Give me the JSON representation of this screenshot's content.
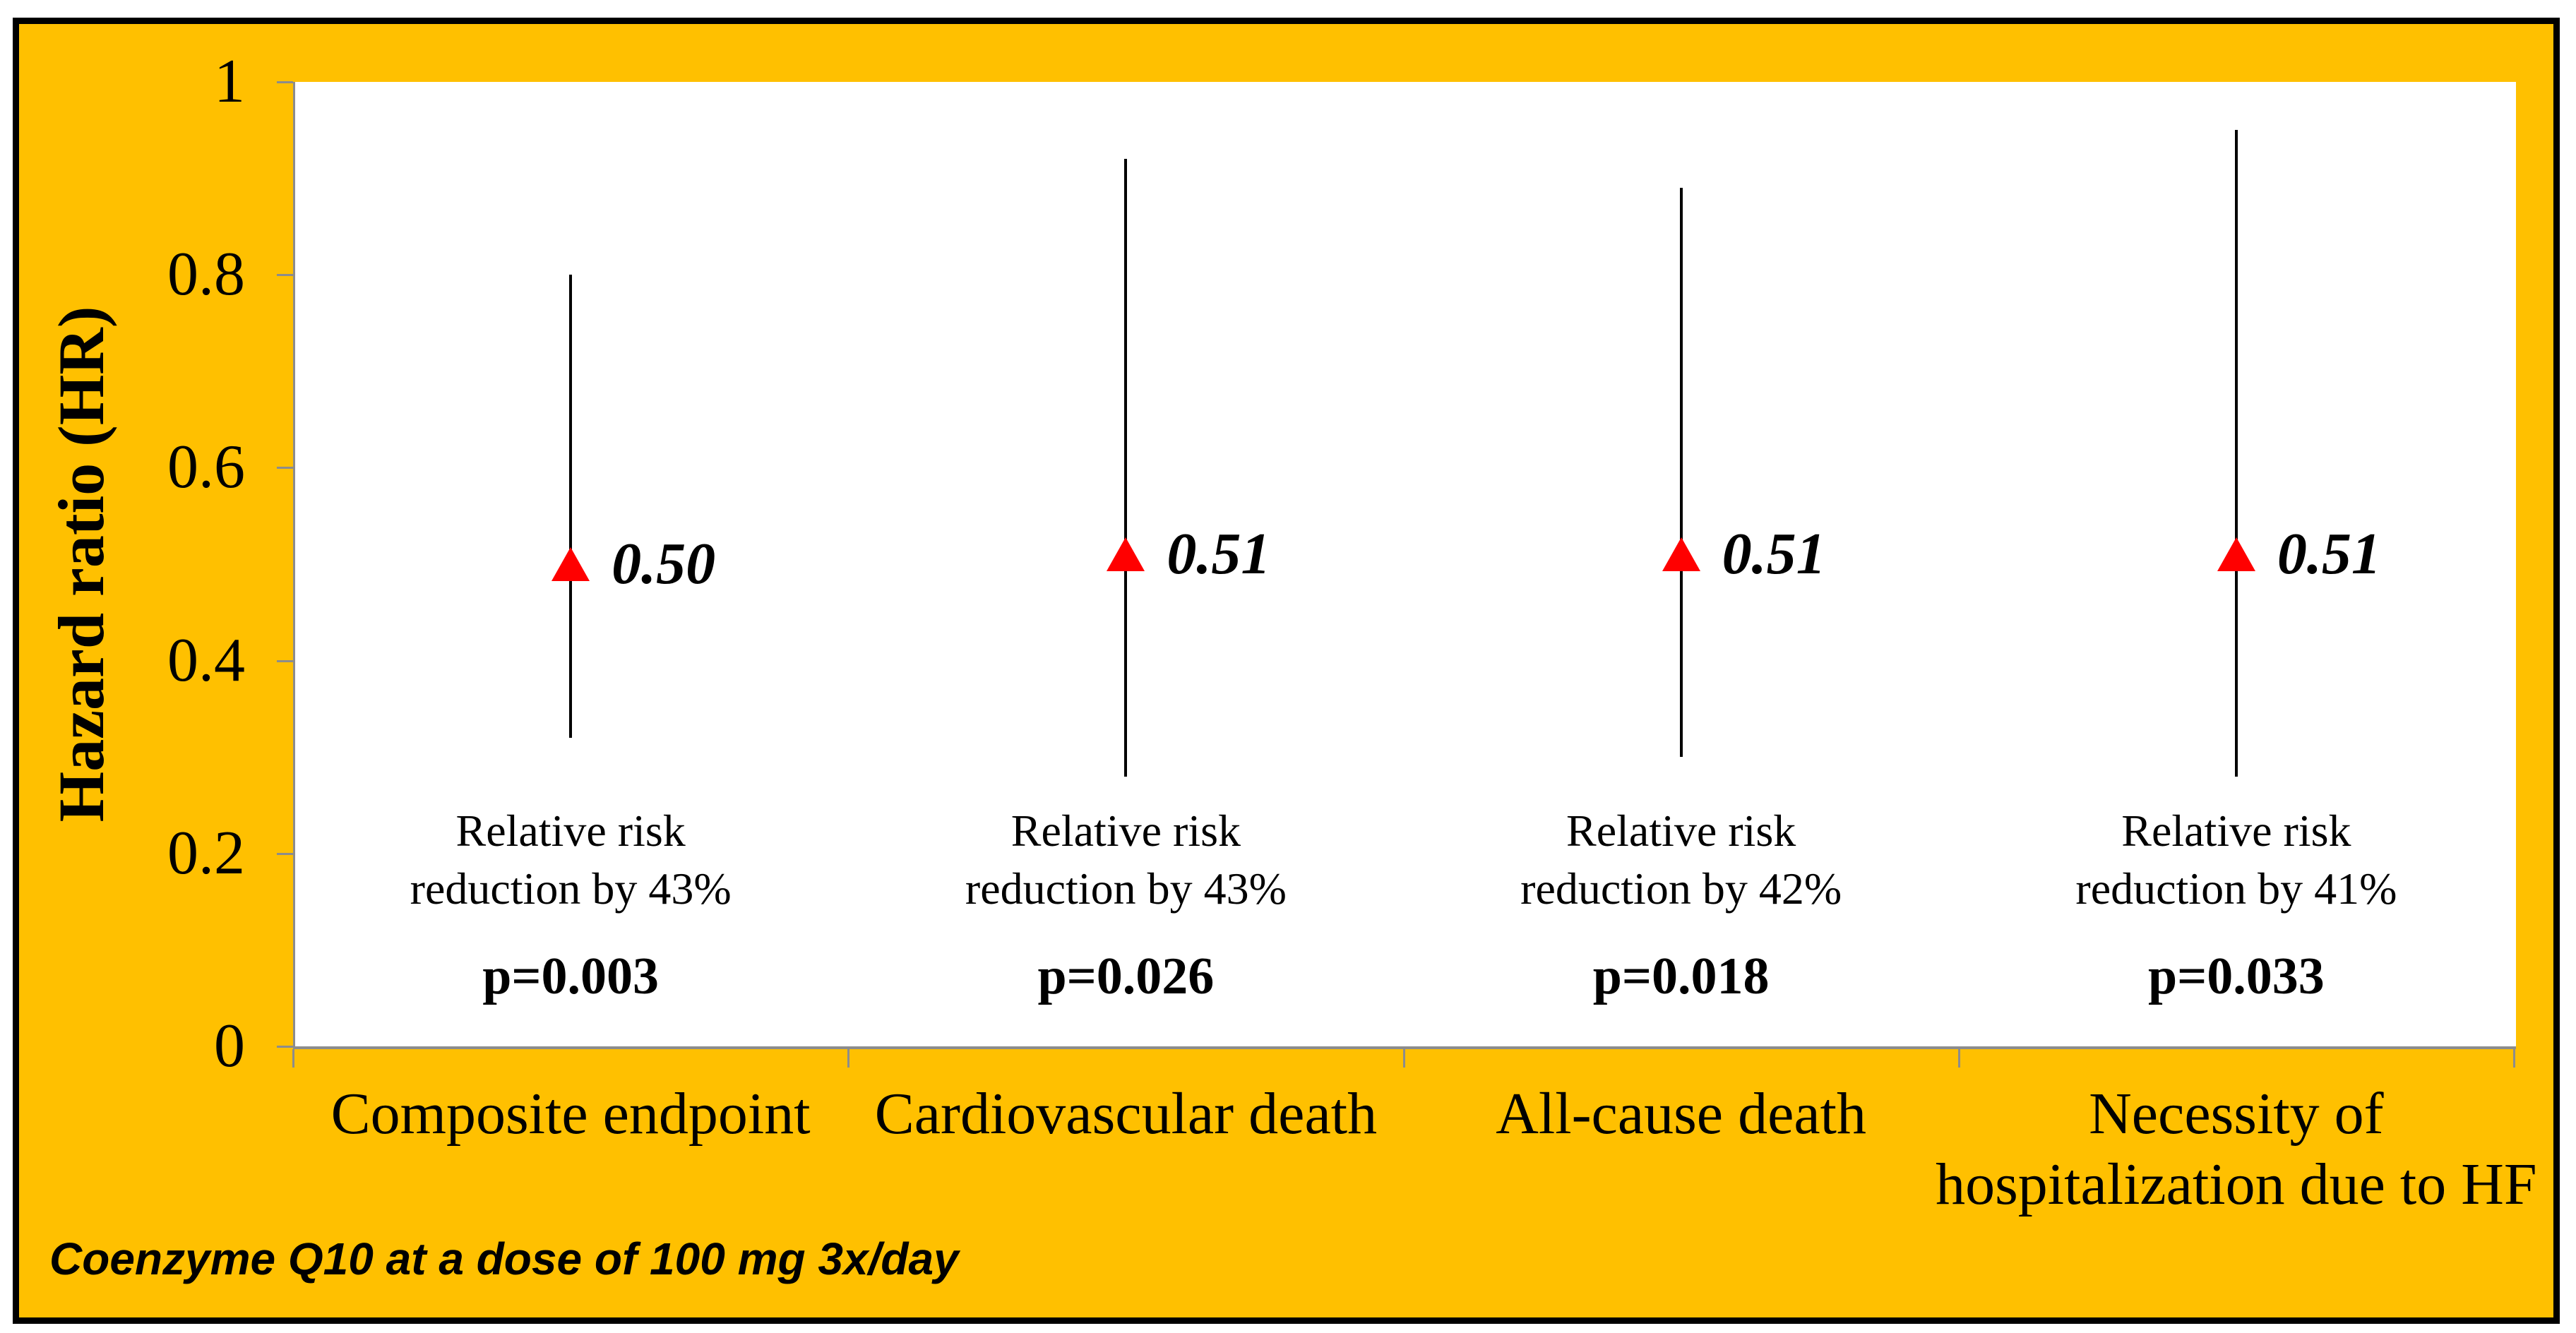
{
  "chart_data": {
    "type": "scatter",
    "subtype": "point-estimates-with-confidence-intervals",
    "title": "",
    "ylabel": "Hazard  ratio (HR)",
    "xlabel": "",
    "ylim": [
      0,
      1
    ],
    "yticks": [
      {
        "value": 1,
        "label": "1"
      },
      {
        "value": 0.8,
        "label": "0.8"
      },
      {
        "value": 0.6,
        "label": "0.6"
      },
      {
        "value": 0.4,
        "label": "0.4"
      },
      {
        "value": 0.2,
        "label": "0.2"
      },
      {
        "value": 0,
        "label": "0"
      }
    ],
    "grid": false,
    "legend_position": "none",
    "marker": "red-triangle-up-icon",
    "categories": [
      "Composite endpoint",
      "Cardiovascular death",
      "All-cause death",
      "Necessity of hospitalization due to HF"
    ],
    "series": [
      {
        "category": "Composite endpoint",
        "hr": 0.5,
        "hr_label": "0.50",
        "ci_low": 0.32,
        "ci_high": 0.8,
        "annotation_line1": "Relative risk",
        "annotation_line2": "reduction by 43%",
        "p_label": "p=0.003"
      },
      {
        "category": "Cardiovascular death",
        "hr": 0.51,
        "hr_label": "0.51",
        "ci_low": 0.28,
        "ci_high": 0.92,
        "annotation_line1": "Relative risk",
        "annotation_line2": "reduction by 43%",
        "p_label": "p=0.026"
      },
      {
        "category": "All-cause death",
        "hr": 0.51,
        "hr_label": "0.51",
        "ci_low": 0.3,
        "ci_high": 0.89,
        "annotation_line1": "Relative risk",
        "annotation_line2": "reduction by 42%",
        "p_label": "p=0.018"
      },
      {
        "category": "Necessity of hospitalization due to HF",
        "hr": 0.51,
        "hr_label": "0.51",
        "ci_low": 0.28,
        "ci_high": 0.95,
        "annotation_line1": "Relative risk",
        "annotation_line2": "reduction by 41%",
        "p_label": "p=0.033"
      }
    ],
    "footnote": "Coenzyme Q10 at a dose of 100 mg 3x/day",
    "colors": {
      "background": "#FFC000",
      "plot_background": "#FFFFFF",
      "axis": "#8C8C8C",
      "error_bar": "#000000",
      "marker": "#FF0000",
      "text": "#000000",
      "outer_border": "#000000"
    }
  }
}
